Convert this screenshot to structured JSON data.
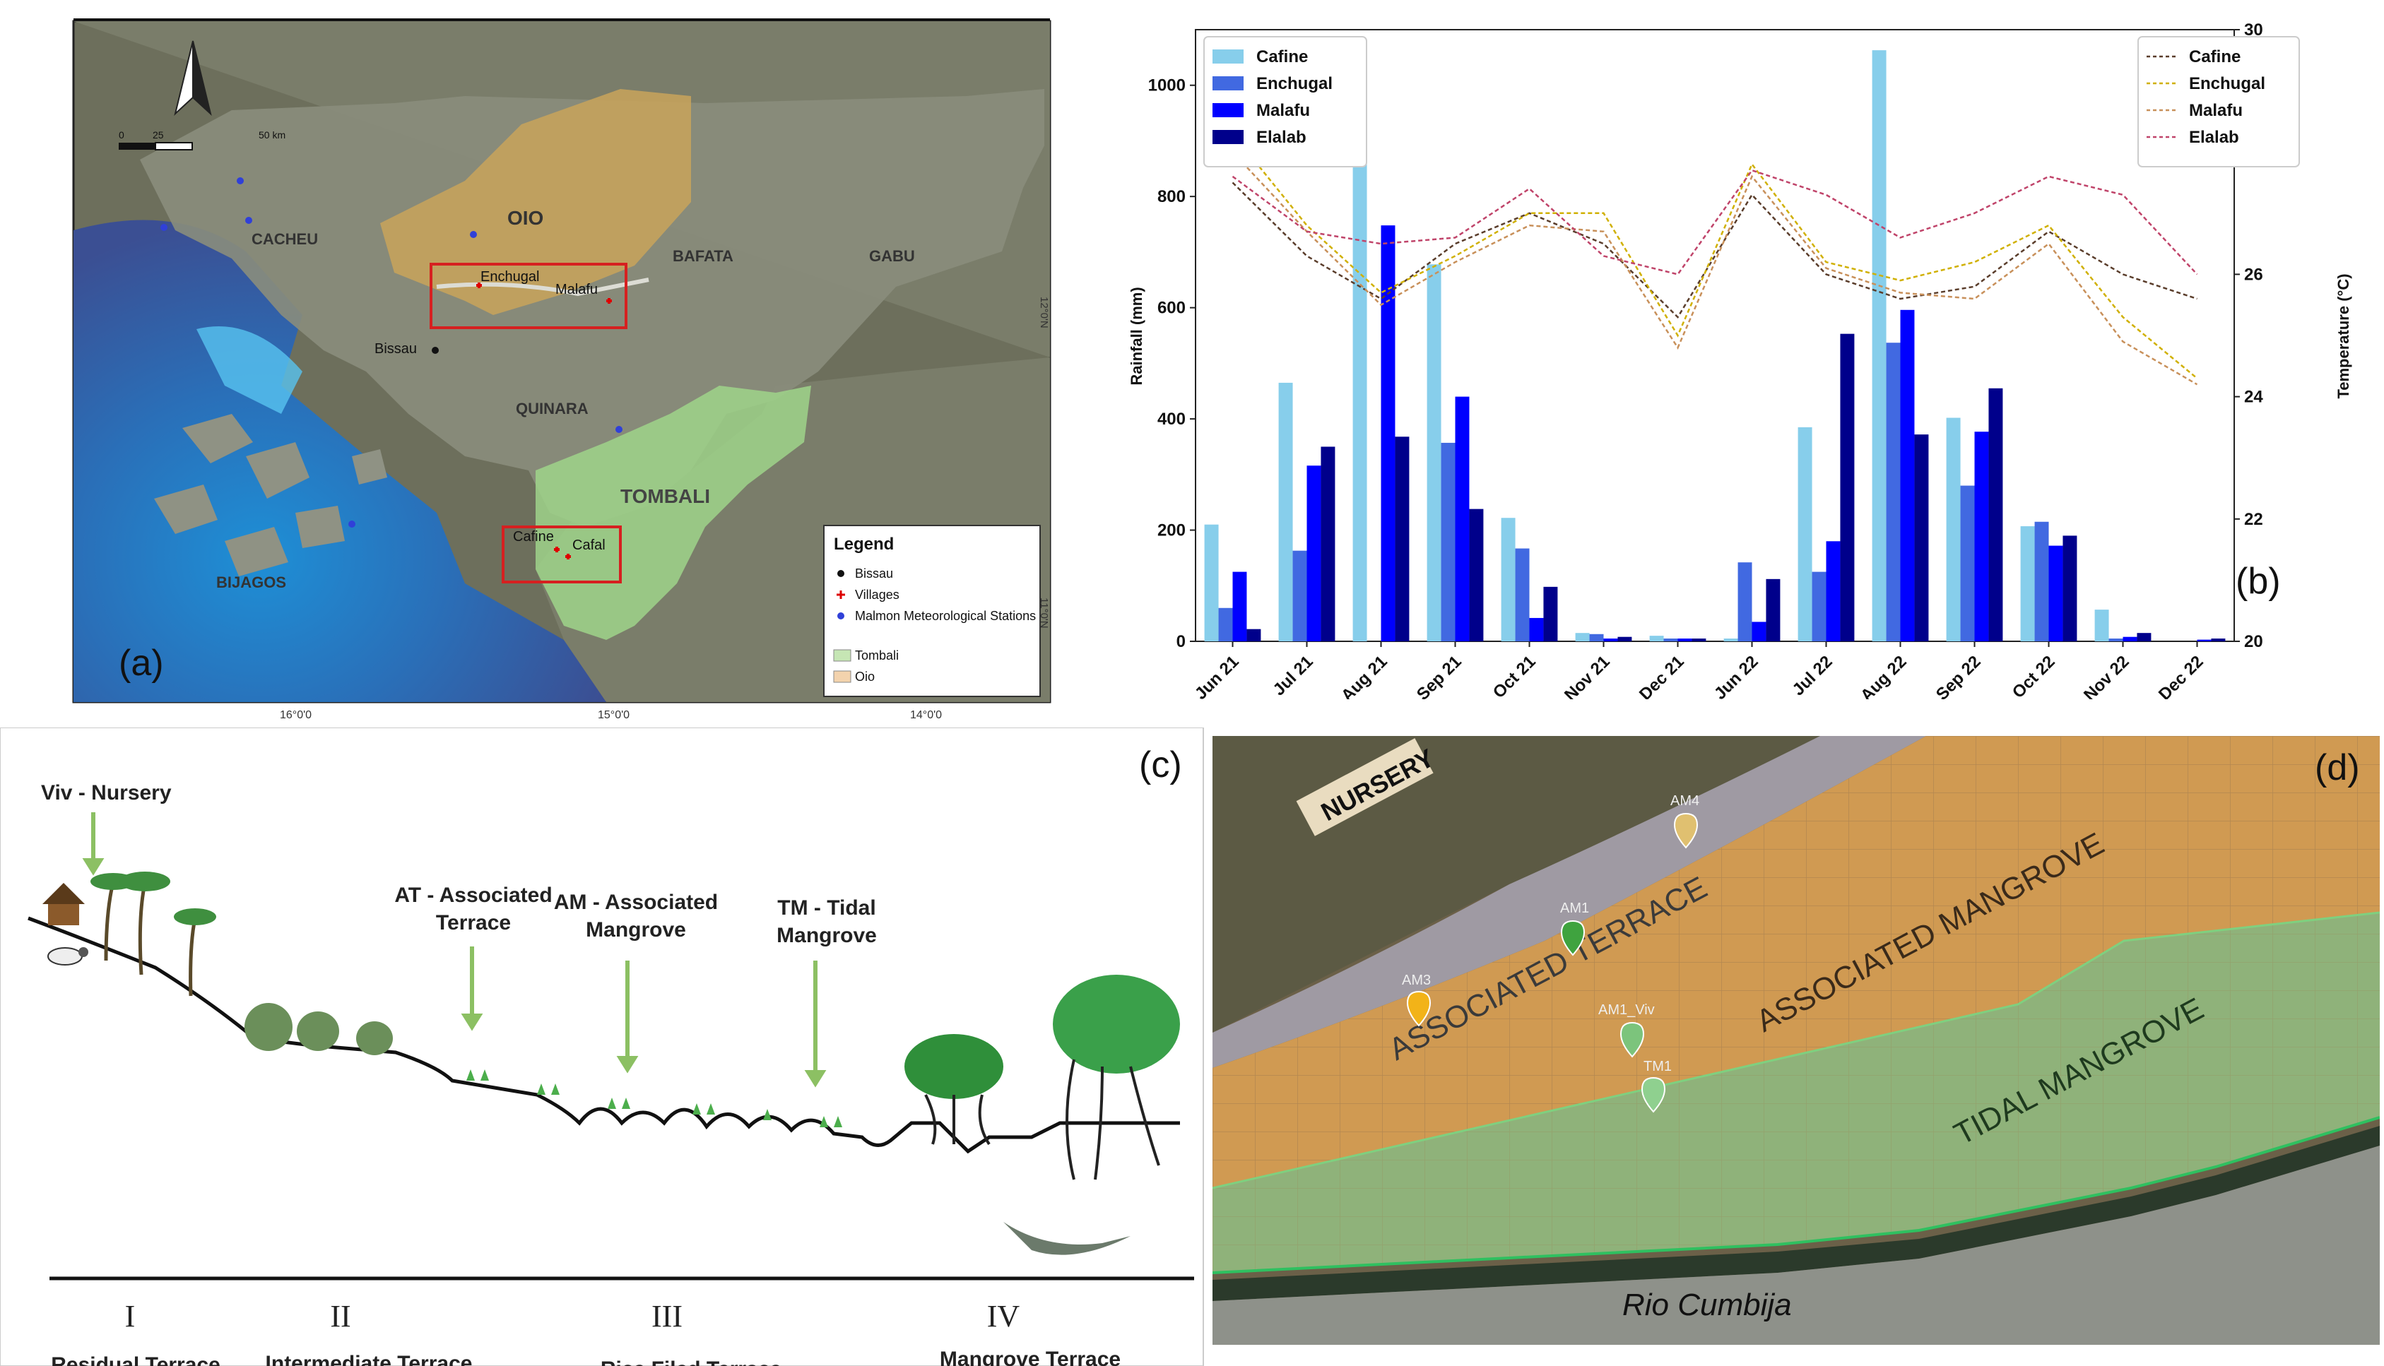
{
  "panel_a": {
    "letter": "(a)",
    "scale": {
      "ticks": [
        "0",
        "25",
        "50 km"
      ]
    },
    "regions": [
      {
        "name": "OIO",
        "color": "#c9a35a"
      },
      {
        "name": "CACHEU"
      },
      {
        "name": "BAFATA"
      },
      {
        "name": "GABU"
      },
      {
        "name": "QUINARA"
      },
      {
        "name": "TOMBALI",
        "color": "#9fd48a"
      },
      {
        "name": "BIJAGOS"
      }
    ],
    "places": [
      "Enchugal",
      "Malafu",
      "Bissau",
      "Cafine",
      "Cafal"
    ],
    "lon_ticks": [
      "16°0'0",
      "15°0'0",
      "14°0'0"
    ],
    "lat_ticks": [
      "12°0'N",
      "11°0'N"
    ],
    "legend": {
      "title": "Legend",
      "items": [
        {
          "label": "Bissau",
          "symbol": "black-dot"
        },
        {
          "label": "Villages",
          "symbol": "red-cross"
        },
        {
          "label": "Malmon Meteorological Stations",
          "symbol": "blue-dot"
        },
        {
          "label": "Tombali",
          "symbol": "green-swatch",
          "color": "#c6e6b4"
        },
        {
          "label": "Oio",
          "symbol": "orange-swatch",
          "color": "#f3d3ad"
        }
      ]
    }
  },
  "panel_b": {
    "letter": "(b)"
  },
  "chart_data": {
    "type": "bar",
    "categories": [
      "Jun 21",
      "Jul 21",
      "Aug 21",
      "Sep 21",
      "Oct 21",
      "Nov 21",
      "Dec 21",
      "Jun 22",
      "Jul 22",
      "Aug 22",
      "Sep 22",
      "Oct 22",
      "Nov 22",
      "Dec 22"
    ],
    "ylabel": "Rainfall (mm)",
    "ylim": [
      0,
      1100
    ],
    "yticks": [
      0,
      200,
      400,
      600,
      800,
      1000
    ],
    "y2label": "Temperature (°C)",
    "y2lim": [
      20,
      30
    ],
    "y2ticks": [
      20,
      22,
      24,
      26,
      28,
      30
    ],
    "legend_left_placement": "top-left",
    "legend_right_placement": "top-right",
    "grid": false,
    "series": [
      {
        "name": "Cafine",
        "color": "#87ceeb",
        "values": [
          210,
          465,
          925,
          678,
          222,
          15,
          10,
          5,
          385,
          1063,
          402,
          207,
          57,
          0
        ]
      },
      {
        "name": "Enchugal",
        "color": "#4169e1",
        "values": [
          60,
          163,
          0,
          357,
          167,
          13,
          5,
          142,
          125,
          537,
          280,
          215,
          5,
          0
        ]
      },
      {
        "name": "Malafu",
        "color": "#0000ff",
        "values": [
          125,
          316,
          748,
          440,
          42,
          5,
          5,
          35,
          180,
          596,
          377,
          172,
          8,
          3
        ]
      },
      {
        "name": "Elalab",
        "color": "#00008b",
        "values": [
          22,
          350,
          368,
          238,
          98,
          8,
          5,
          112,
          553,
          372,
          455,
          190,
          15,
          5
        ]
      }
    ],
    "temperature_series": [
      {
        "name": "Cafine",
        "color": "#5a3d2b",
        "values": [
          27.5,
          26.3,
          25.6,
          26.5,
          27.0,
          26.5,
          25.3,
          27.3,
          26.0,
          25.6,
          25.8,
          26.7,
          26.0,
          25.6
        ]
      },
      {
        "name": "Enchugal",
        "color": "#d0b000",
        "values": [
          28.3,
          26.8,
          25.7,
          26.3,
          27.0,
          27.0,
          25.0,
          27.8,
          26.2,
          25.9,
          26.2,
          26.8,
          25.3,
          24.3
        ]
      },
      {
        "name": "Malafu",
        "color": "#c8905a",
        "values": [
          28.0,
          26.7,
          25.5,
          26.2,
          26.8,
          26.7,
          24.8,
          27.6,
          26.1,
          25.7,
          25.6,
          26.5,
          24.9,
          24.2
        ]
      },
      {
        "name": "Elalab",
        "color": "#c0446a",
        "values": [
          27.6,
          26.7,
          26.5,
          26.6,
          27.4,
          26.3,
          26.0,
          27.7,
          27.3,
          26.6,
          27.0,
          27.6,
          27.3,
          26.0
        ]
      }
    ]
  },
  "panel_c": {
    "letter": "(c)",
    "arrows": [
      {
        "label": "Viv - Nursery"
      },
      {
        "label": "AT - Associated Terrace"
      },
      {
        "label": "AM - Associated Mangrove"
      },
      {
        "label": "TM - Tidal Mangrove"
      }
    ],
    "zones": [
      {
        "roman": "I",
        "label": "Residual Terrace"
      },
      {
        "roman": "II",
        "label": "Intermediate Terrace"
      },
      {
        "roman": "III",
        "label": "Rice Filed Terrace"
      },
      {
        "roman": "IV",
        "label": "Mangrove Terrace"
      }
    ]
  },
  "panel_d": {
    "letter": "(d)",
    "nursery_label": "NURSERY",
    "zone_labels": [
      "ASSOCIATED TERRACE",
      "ASSOCIATED MANGROVE",
      "TIDAL MANGROVE"
    ],
    "river_label": "Rio Cumbija",
    "markers": [
      {
        "label": "AM4",
        "color": "#e0c070"
      },
      {
        "label": "AM1",
        "color": "#3fa33f"
      },
      {
        "label": "AM3",
        "color": "#f2b318"
      },
      {
        "label": "AM1_Viv",
        "color": "#7cc47c"
      },
      {
        "label": "TM1",
        "color": "#8fd08f"
      }
    ]
  }
}
